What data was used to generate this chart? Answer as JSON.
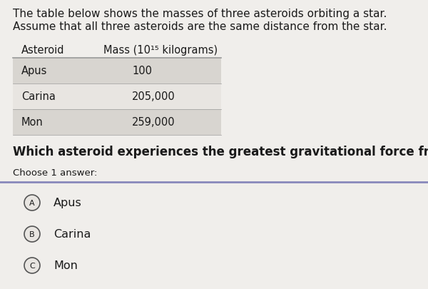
{
  "intro_line1": "The table below shows the masses of three asteroids orbiting a star.",
  "intro_line2": "Assume that all three asteroids are the same distance from the star.",
  "table_header_col1": "Asteroid",
  "table_header_col2": "Mass (10¹⁵ kilograms)",
  "table_rows": [
    [
      "Apus",
      "100"
    ],
    [
      "Carina",
      "205,000"
    ],
    [
      "Mon",
      "259,000"
    ]
  ],
  "question": "Which asteroid experiences the greatest gravitational force from the star?",
  "choose_label": "Choose 1 answer:",
  "choices": [
    [
      "A",
      "Apus"
    ],
    [
      "B",
      "Carina"
    ],
    [
      "C",
      "Mon"
    ]
  ],
  "bg_color": "#f0eeeb",
  "table_row_shaded": "#d8d5d0",
  "table_row_plain": "#e8e5e1",
  "circle_edge_color": "#555555",
  "circle_fill_color": "#e8e5e1",
  "separator_color": "#8888bb",
  "text_color": "#1a1a1a",
  "header_text_color": "#1a1a1a",
  "intro_fontsize": 11.0,
  "table_header_fontsize": 10.5,
  "table_row_fontsize": 10.5,
  "question_fontsize": 12.0,
  "choose_fontsize": 9.5,
  "choice_fontsize": 11.5,
  "letter_fontsize": 8.0
}
